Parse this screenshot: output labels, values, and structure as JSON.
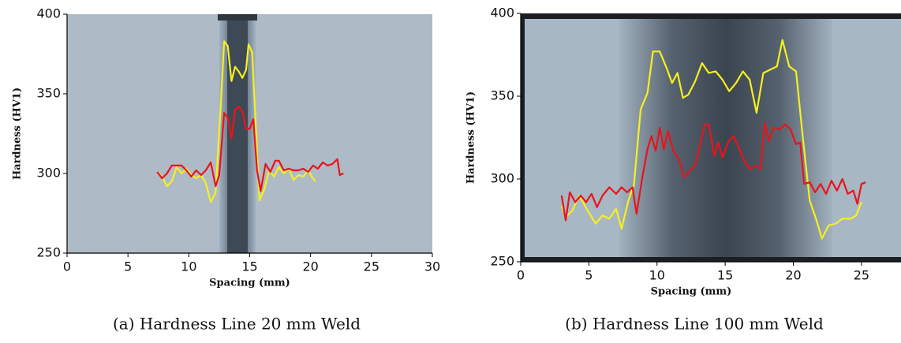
{
  "chart_data": [
    {
      "type": "line",
      "caption": "(a) Hardness Line 20 mm Weld",
      "xlabel": "Spacing (mm)",
      "ylabel": "Hardness (HV1)",
      "xlim": [
        0,
        30
      ],
      "xticks": [
        0,
        5,
        10,
        15,
        20,
        25,
        30
      ],
      "ylim": [
        250,
        400
      ],
      "yticks": [
        250,
        300,
        350,
        400
      ],
      "series": [
        {
          "color": "#f5f01e",
          "x": [
            7.4,
            7.8,
            8.2,
            8.6,
            9.0,
            9.4,
            9.8,
            10.2,
            10.6,
            11.0,
            11.4,
            11.8,
            12.2,
            12.6,
            12.9,
            13.2,
            13.5,
            13.8,
            14.1,
            14.4,
            14.7,
            14.9,
            15.2,
            15.5,
            15.8,
            16.2,
            16.6,
            17.0,
            17.4,
            17.8,
            18.2,
            18.6,
            19.0,
            19.4,
            19.8,
            20.1,
            20.4
          ],
          "values": [
            301,
            298,
            292,
            295,
            304,
            300,
            303,
            299,
            297,
            299,
            294,
            282,
            288,
            340,
            383,
            380,
            358,
            367,
            364,
            360,
            365,
            381,
            376,
            330,
            283,
            290,
            302,
            298,
            304,
            300,
            303,
            296,
            299,
            298,
            302,
            298,
            295
          ]
        },
        {
          "color": "#e8141c",
          "x": [
            7.4,
            7.8,
            8.2,
            8.6,
            9.0,
            9.4,
            9.8,
            10.2,
            10.6,
            11.0,
            11.4,
            11.8,
            12.2,
            12.5,
            12.9,
            13.2,
            13.5,
            13.8,
            14.1,
            14.4,
            14.7,
            15.0,
            15.3,
            15.6,
            15.9,
            16.3,
            16.7,
            17.1,
            17.4,
            17.8,
            18.2,
            18.6,
            19.0,
            19.4,
            19.8,
            20.2,
            20.6,
            21.0,
            21.4,
            21.8,
            22.2,
            22.4,
            22.7
          ],
          "values": [
            301,
            297,
            300,
            305,
            305,
            305,
            302,
            298,
            302,
            299,
            302,
            307,
            292,
            299,
            338,
            335,
            322,
            340,
            342,
            339,
            328,
            328,
            334,
            302,
            289,
            306,
            301,
            308,
            308,
            302,
            303,
            302,
            302,
            303,
            301,
            305,
            303,
            307,
            305,
            306,
            309,
            299,
            300
          ]
        }
      ]
    },
    {
      "type": "line",
      "caption": "(b) Hardness Line 100 mm Weld",
      "xlabel": "Spacing (mm)",
      "ylabel": "Hardness (HV1)",
      "xlim": [
        0,
        27.9
      ],
      "xticks": [
        0,
        5,
        10,
        15,
        20,
        25
      ],
      "ylim": [
        250,
        400
      ],
      "yticks": [
        250,
        300,
        350,
        400
      ],
      "series": [
        {
          "color": "#f5f01e",
          "x": [
            3.0,
            3.3,
            3.8,
            4.3,
            4.9,
            5.5,
            6.0,
            6.5,
            7.0,
            7.4,
            7.9,
            8.3,
            8.8,
            9.3,
            9.7,
            10.2,
            10.7,
            11.1,
            11.5,
            11.9,
            12.3,
            12.8,
            13.3,
            13.8,
            14.3,
            14.8,
            15.3,
            15.8,
            16.3,
            16.8,
            17.3,
            17.8,
            18.3,
            18.8,
            19.2,
            19.7,
            20.2,
            20.7,
            21.2,
            21.7,
            22.1,
            22.6,
            23.1,
            23.6,
            24.2,
            24.6,
            25.0
          ],
          "values": [
            284,
            277,
            281,
            290,
            281,
            273,
            278,
            276,
            282,
            270,
            287,
            296,
            342,
            352,
            377,
            377,
            367,
            358,
            364,
            349,
            351,
            359,
            370,
            364,
            365,
            360,
            353,
            358,
            365,
            360,
            340,
            364,
            366,
            368,
            384,
            368,
            365,
            325,
            287,
            275,
            264,
            272,
            273,
            276,
            276,
            278,
            286
          ]
        },
        {
          "color": "#e8141c",
          "x": [
            3.0,
            3.3,
            3.6,
            4.0,
            4.4,
            4.8,
            5.2,
            5.6,
            6.0,
            6.5,
            7.0,
            7.4,
            7.8,
            8.2,
            8.5,
            8.9,
            9.3,
            9.6,
            9.9,
            10.2,
            10.5,
            10.8,
            11.2,
            11.6,
            12.0,
            12.4,
            12.8,
            13.2,
            13.5,
            13.8,
            14.2,
            14.5,
            14.8,
            15.2,
            15.6,
            16.0,
            16.4,
            16.8,
            17.2,
            17.6,
            17.9,
            18.2,
            18.6,
            19.0,
            19.4,
            19.8,
            20.2,
            20.5,
            20.8,
            21.2,
            21.6,
            22.0,
            22.4,
            22.8,
            23.2,
            23.6,
            24.0,
            24.4,
            24.7,
            25.0,
            25.3
          ],
          "values": [
            290,
            275,
            292,
            286,
            290,
            286,
            291,
            283,
            290,
            295,
            291,
            295,
            292,
            295,
            279,
            300,
            318,
            326,
            317,
            331,
            318,
            329,
            317,
            312,
            301,
            305,
            308,
            322,
            333,
            333,
            314,
            322,
            313,
            322,
            326,
            319,
            311,
            306,
            308,
            306,
            334,
            323,
            331,
            330,
            333,
            330,
            321,
            322,
            297,
            298,
            292,
            297,
            291,
            299,
            293,
            300,
            291,
            293,
            285,
            297,
            298
          ]
        }
      ]
    }
  ]
}
